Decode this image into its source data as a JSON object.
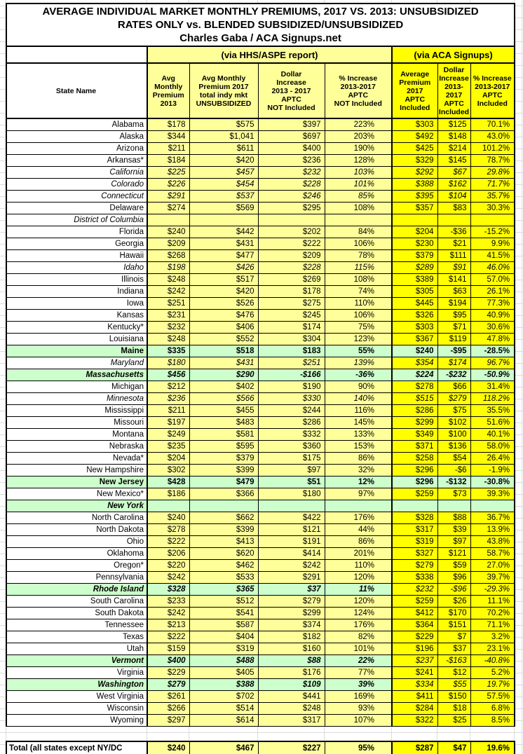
{
  "colors": {
    "light_yellow": "#FFFF99",
    "bright_yellow": "#FFFF00",
    "highlight_green": "#CCFFCC",
    "border": "#000000"
  },
  "chart_data": {
    "type": "table",
    "title": "AVERAGE INDIVIDUAL MARKET MONTHLY PREMIUMS, 2017 VS. 2013: UNSUBSIDIZED\nRATES ONLY vs. BLENDED SUBSIDIZED/UNSUBSIDIZED\nCharles Gaba / ACA Signups.net",
    "groups": [
      "(via HHS/ASPE report)",
      "(via ACA Signups)"
    ],
    "columns": [
      "State Name",
      "Avg\nMonthly\nPremium\n2013",
      "Avg Monthly\nPremium 2017\ntotal indy mkt\nUNSUBSIDIZED",
      "Dollar\nIncrease\n2013 - 2017\nAPTC\nNOT Included",
      "% Increase\n2013-2017\nAPTC\nNOT Included",
      "Average\nPremium\n2017\nAPTC\nIncluded",
      "Dollar\nIncrease\n2013-2017\nAPTC\nIncluded",
      "% Increase\n2013-2017\nAPTC\nIncluded"
    ],
    "rows": [
      {
        "state": "Alabama",
        "style": "normal",
        "cells": [
          "$178",
          "$575",
          "$397",
          "223%",
          "$303",
          "$125",
          "70.1%"
        ]
      },
      {
        "state": "Alaska",
        "style": "normal",
        "cells": [
          "$344",
          "$1,041",
          "$697",
          "203%",
          "$492",
          "$148",
          "43.0%"
        ]
      },
      {
        "state": "Arizona",
        "style": "normal",
        "cells": [
          "$211",
          "$611",
          "$400",
          "190%",
          "$425",
          "$214",
          "101.2%"
        ]
      },
      {
        "state": "Arkansas*",
        "style": "normal",
        "cells": [
          "$184",
          "$420",
          "$236",
          "128%",
          "$329",
          "$145",
          "78.7%"
        ]
      },
      {
        "state": "California",
        "style": "italic",
        "cells": [
          "$225",
          "$457",
          "$232",
          "103%",
          "$292",
          "$67",
          "29.8%"
        ]
      },
      {
        "state": "Colorado",
        "style": "italic",
        "cells": [
          "$226",
          "$454",
          "$228",
          "101%",
          "$388",
          "$162",
          "71.7%"
        ]
      },
      {
        "state": "Connecticut",
        "style": "italic",
        "cells": [
          "$291",
          "$537",
          "$246",
          "85%",
          "$395",
          "$104",
          "35.7%"
        ]
      },
      {
        "state": "Delaware",
        "style": "normal",
        "cells": [
          "$274",
          "$569",
          "$295",
          "108%",
          "$357",
          "$83",
          "30.3%"
        ]
      },
      {
        "state": "District of Columbia",
        "style": "italic",
        "cells": [
          "",
          "",
          "",
          "",
          "",
          "",
          ""
        ]
      },
      {
        "state": "Florida",
        "style": "normal",
        "cells": [
          "$240",
          "$442",
          "$202",
          "84%",
          "$204",
          "-$36",
          "-15.2%"
        ]
      },
      {
        "state": "Georgia",
        "style": "normal",
        "cells": [
          "$209",
          "$431",
          "$222",
          "106%",
          "$230",
          "$21",
          "9.9%"
        ]
      },
      {
        "state": "Hawaii",
        "style": "normal",
        "cells": [
          "$268",
          "$477",
          "$209",
          "78%",
          "$379",
          "$111",
          "41.5%"
        ]
      },
      {
        "state": "Idaho",
        "style": "italic",
        "cells": [
          "$198",
          "$426",
          "$228",
          "115%",
          "$289",
          "$91",
          "46.0%"
        ]
      },
      {
        "state": "Illinois",
        "style": "normal",
        "cells": [
          "$248",
          "$517",
          "$269",
          "108%",
          "$389",
          "$141",
          "57.0%"
        ]
      },
      {
        "state": "Indiana",
        "style": "normal",
        "cells": [
          "$242",
          "$420",
          "$178",
          "74%",
          "$305",
          "$63",
          "26.1%"
        ]
      },
      {
        "state": "Iowa",
        "style": "normal",
        "cells": [
          "$251",
          "$526",
          "$275",
          "110%",
          "$445",
          "$194",
          "77.3%"
        ]
      },
      {
        "state": "Kansas",
        "style": "normal",
        "cells": [
          "$231",
          "$476",
          "$245",
          "106%",
          "$326",
          "$95",
          "40.9%"
        ]
      },
      {
        "state": "Kentucky*",
        "style": "normal",
        "cells": [
          "$232",
          "$406",
          "$174",
          "75%",
          "$303",
          "$71",
          "30.6%"
        ]
      },
      {
        "state": "Louisiana",
        "style": "normal",
        "cells": [
          "$248",
          "$552",
          "$304",
          "123%",
          "$367",
          "$119",
          "47.8%"
        ]
      },
      {
        "state": "Maine",
        "style": "bold-green",
        "cells": [
          "$335",
          "$518",
          "$183",
          "55%",
          "$240",
          "-$95",
          "-28.5%"
        ]
      },
      {
        "state": "Maryland",
        "style": "italic",
        "cells": [
          "$180",
          "$431",
          "$251",
          "139%",
          "$354",
          "$174",
          "96.7%"
        ]
      },
      {
        "state": "Massachusetts",
        "style": "bold-italic-green",
        "cells": [
          "$456",
          "$290",
          "-$166",
          "-36%",
          "$224",
          "-$232",
          "-50.9%"
        ]
      },
      {
        "state": "Michigan",
        "style": "normal",
        "cells": [
          "$212",
          "$402",
          "$190",
          "90%",
          "$278",
          "$66",
          "31.4%"
        ]
      },
      {
        "state": "Minnesota",
        "style": "italic",
        "cells": [
          "$236",
          "$566",
          "$330",
          "140%",
          "$515",
          "$279",
          "118.2%"
        ]
      },
      {
        "state": "Mississippi",
        "style": "normal",
        "cells": [
          "$211",
          "$455",
          "$244",
          "116%",
          "$286",
          "$75",
          "35.5%"
        ]
      },
      {
        "state": "Missouri",
        "style": "normal",
        "cells": [
          "$197",
          "$483",
          "$286",
          "145%",
          "$299",
          "$102",
          "51.6%"
        ]
      },
      {
        "state": "Montana",
        "style": "normal",
        "cells": [
          "$249",
          "$581",
          "$332",
          "133%",
          "$349",
          "$100",
          "40.1%"
        ]
      },
      {
        "state": "Nebraska",
        "style": "normal",
        "cells": [
          "$235",
          "$595",
          "$360",
          "153%",
          "$371",
          "$136",
          "58.0%"
        ]
      },
      {
        "state": "Nevada*",
        "style": "normal",
        "cells": [
          "$204",
          "$379",
          "$175",
          "86%",
          "$258",
          "$54",
          "26.4%"
        ]
      },
      {
        "state": "New Hampshire",
        "style": "normal",
        "cells": [
          "$302",
          "$399",
          "$97",
          "32%",
          "$296",
          "-$6",
          "-1.9%"
        ]
      },
      {
        "state": "New Jersey",
        "style": "bold-green",
        "cells": [
          "$428",
          "$479",
          "$51",
          "12%",
          "$296",
          "-$132",
          "-30.8%"
        ]
      },
      {
        "state": "New Mexico*",
        "style": "normal",
        "cells": [
          "$186",
          "$366",
          "$180",
          "97%",
          "$259",
          "$73",
          "39.3%"
        ]
      },
      {
        "state": "New York",
        "style": "bold-italic-green",
        "cells": [
          "",
          "",
          "",
          "",
          "",
          "",
          ""
        ]
      },
      {
        "state": "North Carolina",
        "style": "normal",
        "cells": [
          "$240",
          "$662",
          "$422",
          "176%",
          "$328",
          "$88",
          "36.7%"
        ]
      },
      {
        "state": "North Dakota",
        "style": "normal",
        "cells": [
          "$278",
          "$399",
          "$121",
          "44%",
          "$317",
          "$39",
          "13.9%"
        ]
      },
      {
        "state": "Ohio",
        "style": "normal",
        "cells": [
          "$222",
          "$413",
          "$191",
          "86%",
          "$319",
          "$97",
          "43.8%"
        ]
      },
      {
        "state": "Oklahoma",
        "style": "normal",
        "cells": [
          "$206",
          "$620",
          "$414",
          "201%",
          "$327",
          "$121",
          "58.7%"
        ]
      },
      {
        "state": "Oregon*",
        "style": "normal",
        "cells": [
          "$220",
          "$462",
          "$242",
          "110%",
          "$279",
          "$59",
          "27.0%"
        ]
      },
      {
        "state": "Pennsylvania",
        "style": "normal",
        "cells": [
          "$242",
          "$533",
          "$291",
          "120%",
          "$338",
          "$96",
          "39.7%"
        ]
      },
      {
        "state": "Rhode Island",
        "style": "bold-italic-split",
        "cells": [
          "$328",
          "$365",
          "$37",
          "11%",
          "$232",
          "-$96",
          "-29.3%"
        ]
      },
      {
        "state": "South Carolina",
        "style": "normal",
        "cells": [
          "$233",
          "$512",
          "$279",
          "120%",
          "$259",
          "$26",
          "11.1%"
        ]
      },
      {
        "state": "South Dakota",
        "style": "normal",
        "cells": [
          "$242",
          "$541",
          "$299",
          "124%",
          "$412",
          "$170",
          "70.2%"
        ]
      },
      {
        "state": "Tennessee",
        "style": "normal",
        "cells": [
          "$213",
          "$587",
          "$374",
          "176%",
          "$364",
          "$151",
          "71.1%"
        ]
      },
      {
        "state": "Texas",
        "style": "normal",
        "cells": [
          "$222",
          "$404",
          "$182",
          "82%",
          "$229",
          "$7",
          "3.2%"
        ]
      },
      {
        "state": "Utah",
        "style": "normal",
        "cells": [
          "$159",
          "$319",
          "$160",
          "101%",
          "$196",
          "$37",
          "23.1%"
        ]
      },
      {
        "state": "Vermont",
        "style": "bold-italic-split",
        "cells": [
          "$400",
          "$488",
          "$88",
          "22%",
          "$237",
          "-$163",
          "-40.8%"
        ]
      },
      {
        "state": "Virginia",
        "style": "normal",
        "cells": [
          "$229",
          "$405",
          "$176",
          "77%",
          "$241",
          "$12",
          "5.2%"
        ]
      },
      {
        "state": "Washington",
        "style": "bold-italic-split",
        "cells": [
          "$279",
          "$388",
          "$109",
          "39%",
          "$334",
          "$55",
          "19.7%"
        ]
      },
      {
        "state": "West Virginia",
        "style": "normal",
        "cells": [
          "$261",
          "$702",
          "$441",
          "169%",
          "$411",
          "$150",
          "57.5%"
        ]
      },
      {
        "state": "Wisconsin",
        "style": "normal",
        "cells": [
          "$266",
          "$514",
          "$248",
          "93%",
          "$284",
          "$18",
          "6.8%"
        ]
      },
      {
        "state": "Wyoming",
        "style": "normal",
        "cells": [
          "$297",
          "$614",
          "$317",
          "107%",
          "$322",
          "$25",
          "8.5%"
        ]
      }
    ],
    "total": {
      "label": "Total (all states except NY/DC",
      "cells": [
        "$240",
        "$467",
        "$227",
        "95%",
        "$287",
        "$47",
        "19.6%"
      ]
    }
  }
}
